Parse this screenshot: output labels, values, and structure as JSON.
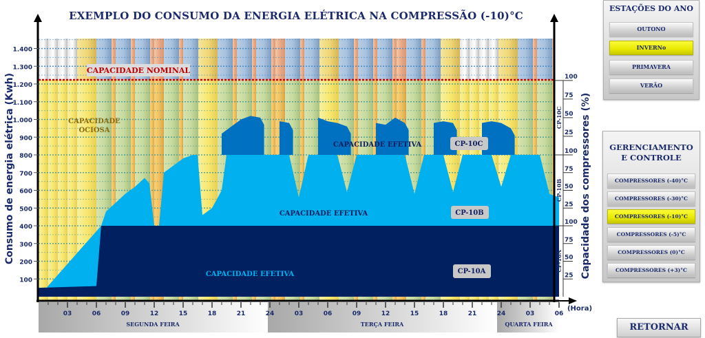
{
  "page": {
    "title": "EXEMPLO DO CONSUMO DA ENERGIA ELÉTRICA NA COMPRESSÃO (-10)°C",
    "retornar_label": "RETORNAR"
  },
  "seasons_panel": {
    "title": "ESTAÇÕES DO ANO",
    "buttons": [
      {
        "label": "OUTONO",
        "active": false
      },
      {
        "label": "INVERNo",
        "active": true
      },
      {
        "label": "PRIMAVERA",
        "active": false
      },
      {
        "label": "VERÃO",
        "active": false
      }
    ]
  },
  "management_panel": {
    "title_line1": "GERENCIAMENTO",
    "title_line2": "E CONTROLE",
    "buttons": [
      {
        "label": "COMPRESSORES (-40)°C",
        "active": false
      },
      {
        "label": "COMPRESSORES (-30)°C",
        "active": false
      },
      {
        "label": "COMPRESSORES (-10)°C",
        "active": true
      },
      {
        "label": "COMPRESSORES (-5)°C",
        "active": false
      },
      {
        "label": "COMPRESSORES (0)°C",
        "active": false
      },
      {
        "label": "COMPRESSORES (+3)°C",
        "active": false
      }
    ]
  },
  "colors": {
    "cp10a": "#00205f",
    "cp10b": "#00b0ef",
    "cp10c": "#0070c0",
    "axis_text": "#1a2a6a",
    "nominal_line": "#d00000",
    "idle_text": "#8a6d10",
    "active_button": "#ffff00"
  },
  "chart_data": {
    "type": "area",
    "title": "EXEMPLO DO CONSUMO DA ENERGIA ELÉTRICA NA COMPRESSÃO (-10)°C",
    "xlabel": "(Hora)",
    "ylabel": "Consumo de energia elétrica (Kwh)",
    "ylabel_right": "Capacidade dos compressores (%)",
    "ylim": [
      0,
      1450
    ],
    "yticks": [
      "100",
      "200",
      "300",
      "400",
      "500",
      "600",
      "700",
      "800",
      "900",
      "1.000",
      "1.100",
      "1.200",
      "1.300",
      "1.400"
    ],
    "x_ticks": [
      "03",
      "06",
      "09",
      "12",
      "15",
      "18",
      "21",
      "24",
      "03",
      "06",
      "09",
      "12",
      "15",
      "18",
      "21",
      "24",
      "03",
      "06"
    ],
    "days": [
      "SEGUNDA FEIRA",
      "TERÇA FEIRA",
      "QUARTA FEIRA"
    ],
    "x_range_hours": [
      0,
      54
    ],
    "grid": true,
    "nominal_capacity": {
      "label": "CAPACIDADE NOMINAL",
      "value": 1220
    },
    "idle_label": [
      "CAPACIDADE",
      "OCIOSA"
    ],
    "effective_label": "CAPACIDADE EFETIVA",
    "right_axis_groups": [
      {
        "name": "CP-10C",
        "ticks": [
          "100",
          "75",
          "50",
          "25"
        ]
      },
      {
        "name": "CP-10B",
        "ticks": [
          "100",
          "75",
          "50",
          "25"
        ]
      },
      {
        "name": "CP-10A",
        "ticks": [
          "100",
          "75",
          "50",
          "25"
        ]
      }
    ],
    "series": [
      {
        "name": "CP-10A",
        "x": [
          0,
          6,
          6.5,
          54
        ],
        "values": [
          50,
          60,
          400,
          400
        ]
      },
      {
        "name": "CP-10B",
        "x": [
          0,
          6.5,
          7,
          9,
          10,
          11,
          11.5,
          12,
          12.5,
          13,
          15,
          16,
          16.5,
          17,
          18,
          19,
          19.5,
          20,
          24,
          25,
          26,
          27,
          28,
          29,
          30,
          31,
          32,
          33,
          34,
          35,
          36,
          37,
          38,
          39,
          40,
          41,
          42,
          43,
          44,
          45,
          46,
          47,
          48,
          49,
          50,
          51,
          52,
          53,
          54
        ],
        "values": [
          0,
          400,
          480,
          580,
          620,
          670,
          640,
          400,
          400,
          700,
          780,
          800,
          800,
          460,
          500,
          600,
          800,
          800,
          800,
          800,
          800,
          560,
          800,
          800,
          800,
          800,
          590,
          800,
          800,
          800,
          800,
          800,
          800,
          580,
          800,
          800,
          800,
          590,
          800,
          800,
          800,
          800,
          620,
          800,
          800,
          800,
          800,
          580,
          560
        ]
      },
      {
        "name": "CP-10C",
        "x": [
          19,
          20,
          21,
          22,
          23,
          24,
          25,
          26,
          27,
          28,
          29,
          30,
          31,
          32,
          33,
          34,
          35,
          36,
          37,
          38,
          39,
          40,
          41,
          42,
          43,
          44,
          45,
          46,
          47,
          48,
          49,
          50,
          51,
          52,
          53
        ],
        "values": [
          920,
          960,
          1000,
          1020,
          1010,
          0,
          990,
          980,
          0,
          0,
          1010,
          990,
          980,
          960,
          0,
          0,
          980,
          970,
          1010,
          980,
          0,
          0,
          980,
          990,
          980,
          0,
          0,
          980,
          990,
          980,
          950,
          0,
          0,
          0,
          0
        ]
      }
    ],
    "series_labels": [
      "CP-10A",
      "CP-10B",
      "CP-10C"
    ]
  }
}
